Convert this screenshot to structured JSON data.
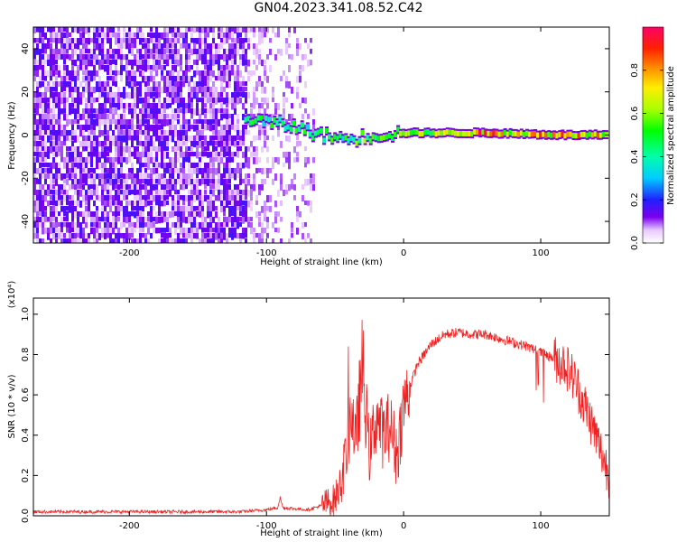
{
  "title": "GN04.2023.341.08.52.C42",
  "chart_data": [
    {
      "type": "heatmap",
      "xlabel": "Height of straight line (km)",
      "ylabel": "Frequency (Hz)",
      "xlim": [
        -270,
        150
      ],
      "ylim": [
        -50,
        50
      ],
      "xticks": [
        -200,
        -100,
        0,
        100
      ],
      "yticks": [
        -40,
        -20,
        0,
        20,
        40
      ],
      "colorbar": {
        "label": "Normalized spectral amplitude",
        "range": [
          0,
          1
        ],
        "ticks": [
          0.0,
          0.2,
          0.4,
          0.6,
          0.8
        ]
      },
      "noise_region_x": [
        -270,
        -65
      ],
      "signal_ridge": [
        {
          "x": -115,
          "y": 8,
          "amp": 0.5
        },
        {
          "x": -100,
          "y": 6,
          "amp": 0.5
        },
        {
          "x": -80,
          "y": 4,
          "amp": 0.5
        },
        {
          "x": -60,
          "y": 0,
          "amp": 0.5
        },
        {
          "x": -40,
          "y": -2,
          "amp": 0.55
        },
        {
          "x": -20,
          "y": 0,
          "amp": 0.6
        },
        {
          "x": 0,
          "y": 1,
          "amp": 0.65
        },
        {
          "x": 30,
          "y": 1,
          "amp": 0.7
        },
        {
          "x": 60,
          "y": 1,
          "amp": 0.9
        },
        {
          "x": 90,
          "y": 0.5,
          "amp": 0.85
        },
        {
          "x": 120,
          "y": 0,
          "amp": 0.9
        },
        {
          "x": 150,
          "y": 0,
          "amp": 0.85
        }
      ]
    },
    {
      "type": "line",
      "xlabel": "Height of straight line (km)",
      "ylabel": "SNR (10 * v/v)",
      "y_multiplier": "(x10⁴)",
      "xlim": [
        -270,
        150
      ],
      "ylim": [
        0,
        1.08
      ],
      "xticks": [
        -200,
        -100,
        0,
        100
      ],
      "yticks": [
        0.0,
        0.2,
        0.4,
        0.6,
        0.8,
        1.0
      ],
      "series": [
        {
          "color": "#ee2222",
          "x": [
            -270,
            -200,
            -120,
            -100,
            -92,
            -90,
            -88,
            -70,
            -60,
            -50,
            -45,
            -40,
            -38,
            -35,
            -30,
            -25,
            -20,
            -15,
            -10,
            -5,
            0,
            10,
            20,
            30,
            40,
            50,
            60,
            70,
            80,
            90,
            100,
            110,
            118,
            125,
            130,
            135,
            140,
            145,
            150
          ],
          "y": [
            0.02,
            0.02,
            0.02,
            0.03,
            0.04,
            0.09,
            0.04,
            0.03,
            0.05,
            0.08,
            0.18,
            0.4,
            0.55,
            0.35,
            0.75,
            0.3,
            0.5,
            0.4,
            0.45,
            0.3,
            0.55,
            0.75,
            0.85,
            0.9,
            0.91,
            0.9,
            0.9,
            0.88,
            0.86,
            0.84,
            0.81,
            0.78,
            0.75,
            0.67,
            0.58,
            0.5,
            0.4,
            0.3,
            0.2
          ]
        }
      ]
    }
  ]
}
